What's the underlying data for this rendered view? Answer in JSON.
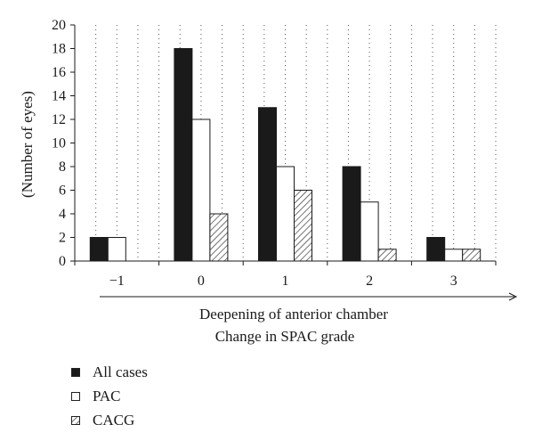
{
  "chart_data": {
    "type": "bar",
    "categories": [
      "−1",
      "0",
      "1",
      "2",
      "3"
    ],
    "series": [
      {
        "name": "All cases",
        "values": [
          2,
          18,
          13,
          8,
          2
        ]
      },
      {
        "name": "PAC",
        "values": [
          2,
          12,
          8,
          5,
          1
        ]
      },
      {
        "name": "CACG",
        "values": [
          0,
          4,
          6,
          1,
          1
        ]
      }
    ],
    "ylabel": "(Number of eyes)",
    "xlabel_lines": [
      "Deepening of anterior chamber",
      "Change in SPAC grade"
    ],
    "ylim": [
      0,
      20
    ],
    "yticks": [
      0,
      2,
      4,
      6,
      8,
      10,
      12,
      14,
      16,
      18,
      20
    ],
    "grid": "vertical dotted",
    "legend_position": "bottom-left"
  },
  "legend": [
    {
      "label": "All cases",
      "style": "solid",
      "color": "#1a1a1a"
    },
    {
      "label": "PAC",
      "style": "white",
      "color": "#ffffff"
    },
    {
      "label": "CACG",
      "style": "hatched",
      "color": "#1a1a1a"
    }
  ]
}
